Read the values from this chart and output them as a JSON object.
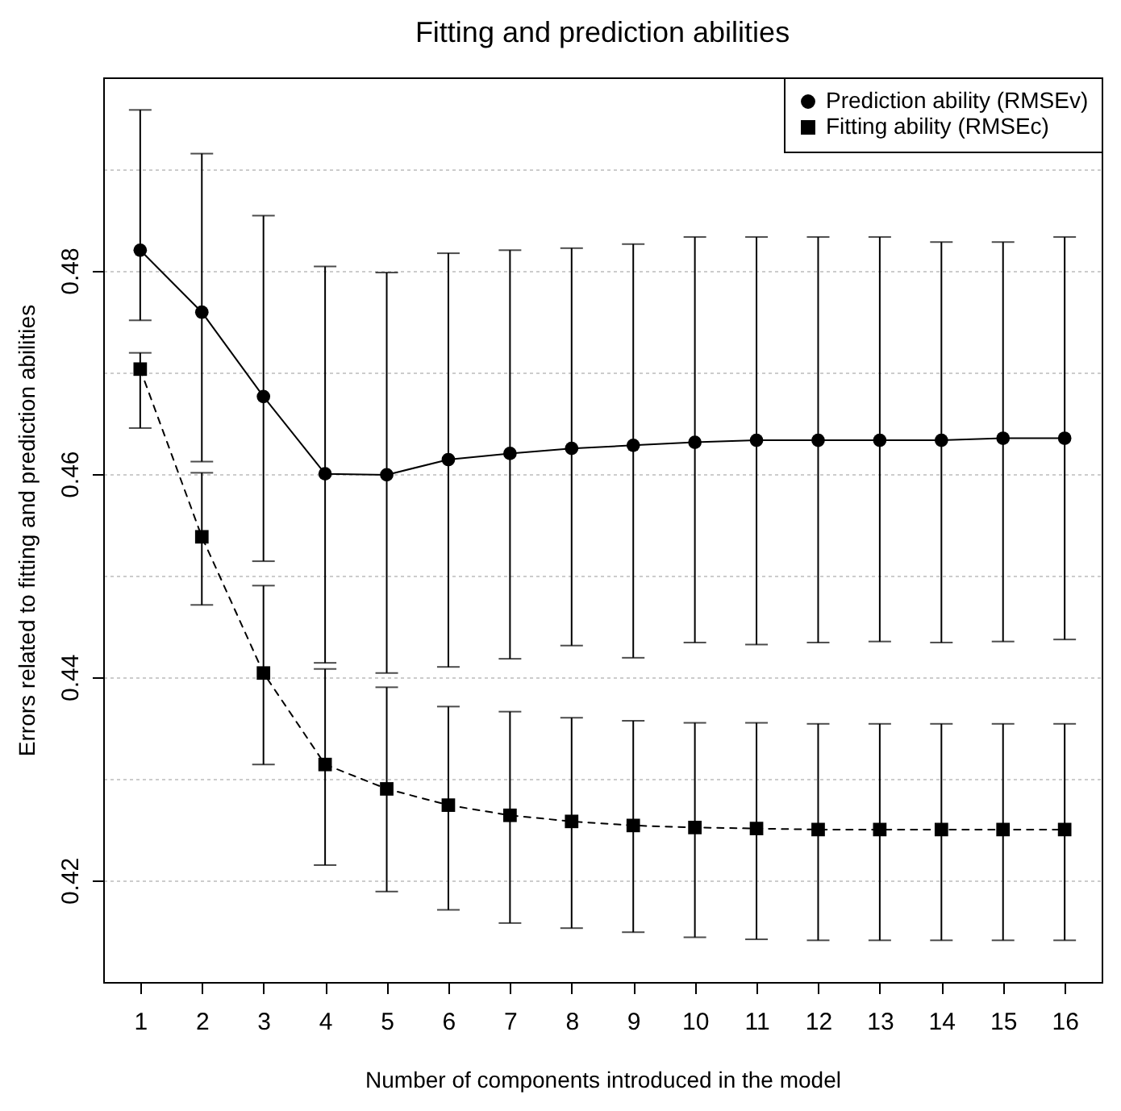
{
  "chart_data": {
    "type": "line",
    "title": "Fitting and prediction abilities",
    "xlabel": "Number of components introduced in the model",
    "ylabel": "Errors related to fitting and prediction abilities",
    "x": [
      1,
      2,
      3,
      4,
      5,
      6,
      7,
      8,
      9,
      10,
      11,
      12,
      13,
      14,
      15,
      16
    ],
    "series": [
      {
        "name": "Prediction ability (RMSEv)",
        "color": "#000000",
        "marker": "circle",
        "line_style": "solid",
        "values": [
          0.482,
          0.4759,
          0.4676,
          0.46,
          0.4599,
          0.4614,
          0.462,
          0.4625,
          0.4628,
          0.4631,
          0.4633,
          0.4633,
          0.4633,
          0.4633,
          0.4635,
          0.4635
        ],
        "errors": [
          [
            0.4751,
            0.4958
          ],
          [
            0.4612,
            0.4915
          ],
          [
            0.4514,
            0.4854
          ],
          [
            0.4414,
            0.4804
          ],
          [
            0.4404,
            0.4798
          ],
          [
            0.441,
            0.4817
          ],
          [
            0.4418,
            0.482
          ],
          [
            0.4431,
            0.4822
          ],
          [
            0.4419,
            0.4826
          ],
          [
            0.4434,
            0.4833
          ],
          [
            0.4432,
            0.4833
          ],
          [
            0.4434,
            0.4833
          ],
          [
            0.4435,
            0.4833
          ],
          [
            0.4434,
            0.4828
          ],
          [
            0.4435,
            0.4828
          ],
          [
            0.4437,
            0.4833
          ]
        ]
      },
      {
        "name": "Fitting ability (RMSEc)",
        "color": "#000000",
        "marker": "square",
        "line_style": "dashed",
        "values": [
          0.4703,
          0.4538,
          0.4404,
          0.4314,
          0.429,
          0.4274,
          0.4264,
          0.4258,
          0.4254,
          0.4252,
          0.4251,
          0.425,
          0.425,
          0.425,
          0.425,
          0.425
        ],
        "errors": [
          [
            0.4645,
            0.4719
          ],
          [
            0.4471,
            0.4601
          ],
          [
            0.4314,
            0.449
          ],
          [
            0.4215,
            0.4408
          ],
          [
            0.4189,
            0.439
          ],
          [
            0.4171,
            0.4371
          ],
          [
            0.4158,
            0.4366
          ],
          [
            0.4153,
            0.436
          ],
          [
            0.4149,
            0.4357
          ],
          [
            0.4144,
            0.4355
          ],
          [
            0.4142,
            0.4355
          ],
          [
            0.4141,
            0.4354
          ],
          [
            0.4141,
            0.4354
          ],
          [
            0.4141,
            0.4354
          ],
          [
            0.4141,
            0.4354
          ],
          [
            0.4141,
            0.4354
          ]
        ]
      }
    ],
    "xlim": [
      0.4,
      16.6
    ],
    "xticks": [
      1,
      2,
      3,
      4,
      5,
      6,
      7,
      8,
      9,
      10,
      11,
      12,
      13,
      14,
      15,
      16
    ],
    "ylim": [
      0.41,
      0.499
    ],
    "yticks": [
      {
        "value": 0.41,
        "label": null
      },
      0.42,
      {
        "value": 0.43,
        "label": null
      },
      0.44,
      {
        "value": 0.45,
        "label": null
      },
      0.46,
      {
        "value": 0.47,
        "label": null
      },
      0.48,
      {
        "value": 0.49,
        "label": null
      }
    ],
    "grid": "y",
    "legend": "top right"
  }
}
